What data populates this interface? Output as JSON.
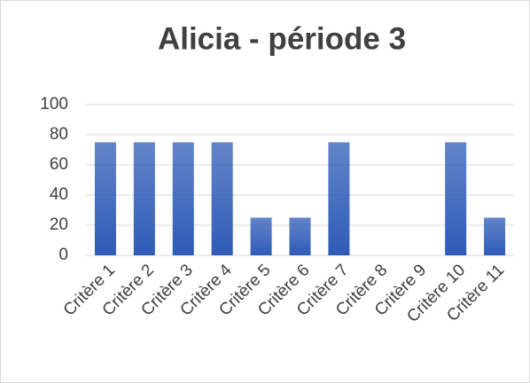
{
  "chart_data": {
    "type": "bar",
    "title": "Alicia - période 3",
    "categories": [
      "Critère 1",
      "Critère 2",
      "Critère 3",
      "Critère 4",
      "Critère 5",
      "Critère 6",
      "Critère 7",
      "Critère 8",
      "Critère 9",
      "Critère 10",
      "Critère 11"
    ],
    "values": [
      75,
      75,
      75,
      75,
      25,
      25,
      75,
      0,
      0,
      75,
      25
    ],
    "color": "#2f5bb7",
    "ylim": [
      0,
      100
    ],
    "yticks": [
      0,
      20,
      40,
      60,
      80,
      100
    ],
    "grid": true
  }
}
